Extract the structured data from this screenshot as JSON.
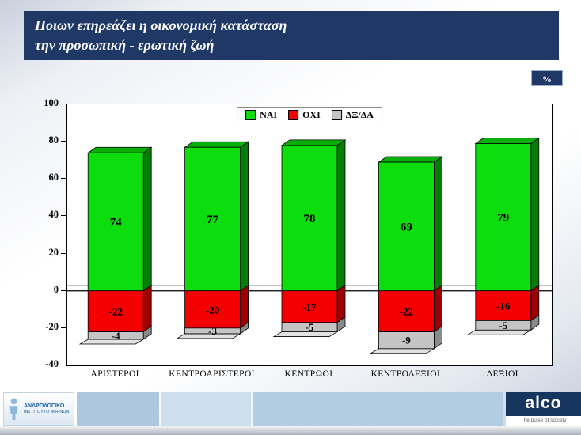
{
  "title": {
    "line1": "Ποιων επηρεάζει η οικονομική κατάσταση",
    "line2": "την προσωπική - ερωτική ζωή"
  },
  "percent_badge": "%",
  "chart_data": {
    "type": "bar",
    "stacked": true,
    "title": "Ποιων επηρεάζει η οικονομική κατάσταση την προσωπική - ερωτική ζωή",
    "unit": "%",
    "categories": [
      "ΑΡΙΣΤΕΡΟΙ",
      "ΚΕΝΤΡΟΑΡΙΣΤΕΡΟΙ",
      "ΚΕΝΤΡΩΟΙ",
      "ΚΕΝΤΡΟΔΕΞΙΟΙ",
      "ΔΕΞΙΟΙ"
    ],
    "series": [
      {
        "name": "ΝΑΙ",
        "values": [
          74,
          77,
          78,
          69,
          79
        ],
        "color_front": "#0ddd0d",
        "color_top": "#0aae0a",
        "color_side": "#067d06"
      },
      {
        "name": "ΟΧΙ",
        "values": [
          -22,
          -20,
          -17,
          -22,
          -16
        ],
        "color_front": "#f40000",
        "color_side": "#9c0000"
      },
      {
        "name": "ΔΞ/ΔΑ",
        "values": [
          -4,
          -3,
          -5,
          -9,
          -5
        ],
        "color_front": "#c4c4c4",
        "color_side": "#8a8a8a",
        "color_bottom": "#e2e2e2"
      }
    ],
    "ylim": [
      -40,
      100
    ],
    "yticks": [
      100,
      80,
      60,
      40,
      20,
      0,
      -20,
      -40
    ],
    "legend_position": "top-center",
    "grid": false
  },
  "footer": {
    "institute": {
      "line1": "ΑΝΔΡΟΛΟΓΙΚΟ",
      "line2": "ΙΝΣΤΙΤΟΥΤΟ ΑΘΗΝΩΝ"
    },
    "alco": {
      "name": "alco",
      "tagline": "The pulse of society"
    }
  }
}
